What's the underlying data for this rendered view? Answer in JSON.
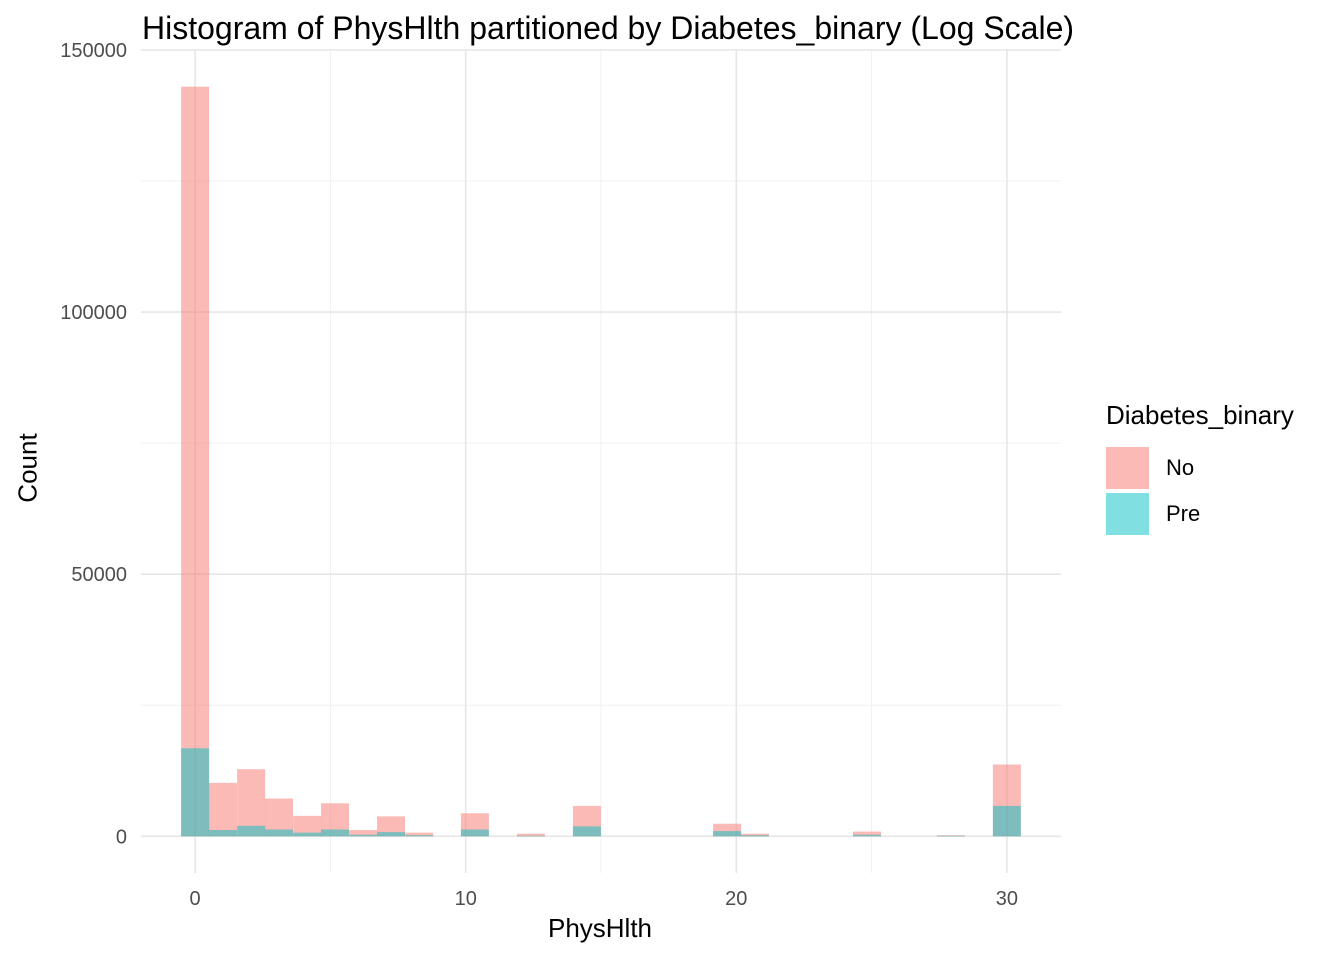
{
  "chart_data": {
    "type": "bar",
    "title": "Histogram of PhysHlth partitioned by Diabetes_binary (Log Scale)",
    "xlabel": "PhysHlth",
    "ylabel": "Count",
    "xlim": [
      -2,
      32
    ],
    "ylim": [
      -7000,
      150000
    ],
    "x_ticks": [
      0,
      10,
      20,
      30
    ],
    "y_ticks": [
      0,
      50000,
      100000,
      150000
    ],
    "bin_width": 1.034,
    "grid": true,
    "legend_title": "Diabetes_binary",
    "legend_position": "right",
    "series": [
      {
        "name": "No",
        "color": "#F8766D",
        "bins": [
          {
            "x": 0.0,
            "value": 143000
          },
          {
            "x": 1.03,
            "value": 10200
          },
          {
            "x": 2.07,
            "value": 12800
          },
          {
            "x": 3.1,
            "value": 7200
          },
          {
            "x": 4.14,
            "value": 3900
          },
          {
            "x": 5.17,
            "value": 6300
          },
          {
            "x": 6.21,
            "value": 1200
          },
          {
            "x": 7.24,
            "value": 3800
          },
          {
            "x": 8.28,
            "value": 700
          },
          {
            "x": 10.34,
            "value": 4400
          },
          {
            "x": 12.41,
            "value": 500
          },
          {
            "x": 14.48,
            "value": 5800
          },
          {
            "x": 19.66,
            "value": 2400
          },
          {
            "x": 20.69,
            "value": 500
          },
          {
            "x": 24.83,
            "value": 900
          },
          {
            "x": 27.93,
            "value": 200
          },
          {
            "x": 30.0,
            "value": 13700
          }
        ]
      },
      {
        "name": "Pre",
        "color": "#00BFC4",
        "bins": [
          {
            "x": 0.0,
            "value": 16800
          },
          {
            "x": 1.03,
            "value": 1200
          },
          {
            "x": 2.07,
            "value": 2000
          },
          {
            "x": 3.1,
            "value": 1300
          },
          {
            "x": 4.14,
            "value": 700
          },
          {
            "x": 5.17,
            "value": 1300
          },
          {
            "x": 6.21,
            "value": 300
          },
          {
            "x": 7.24,
            "value": 800
          },
          {
            "x": 8.28,
            "value": 200
          },
          {
            "x": 10.34,
            "value": 1300
          },
          {
            "x": 12.41,
            "value": 100
          },
          {
            "x": 14.48,
            "value": 1900
          },
          {
            "x": 19.66,
            "value": 1000
          },
          {
            "x": 20.69,
            "value": 200
          },
          {
            "x": 24.83,
            "value": 300
          },
          {
            "x": 27.93,
            "value": 100
          },
          {
            "x": 30.0,
            "value": 5800
          }
        ]
      }
    ]
  }
}
